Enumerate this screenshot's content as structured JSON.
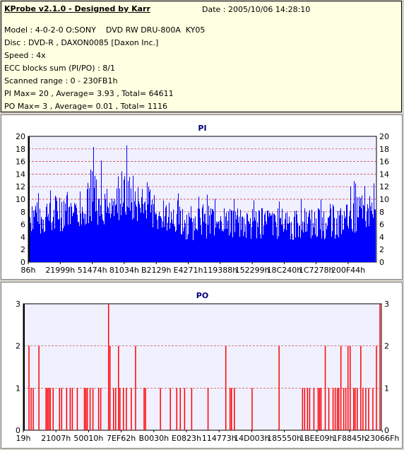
{
  "header": {
    "title": "KProbe v2.1.0 - Designed by Karr",
    "date": "Date : 2005/10/06 14:28:10",
    "lines": [
      "Model : 4-0-2-0 O:SONY    DVD RW DRU-800A  KY05",
      "Disc : DVD-R , DAXON0085 [Daxon Inc.]",
      "Speed : 4x",
      "ECC blocks sum (PI/PO) : 8/1",
      "Scanned range : 0 - 230FB1h",
      "PI Max= 20 , Average= 3.93 , Total= 64611",
      "PO Max= 3 , Average= 0.01 , Total= 1116"
    ]
  },
  "colors": {
    "pi": "#0000ff",
    "po": "#ff0000",
    "plot_bg": "#f0f0ff",
    "grid": "#cc3333"
  },
  "chart_data": [
    {
      "type": "bar",
      "title": "PI",
      "ylim": [
        0,
        20
      ],
      "yticks": [
        0,
        2,
        4,
        6,
        8,
        10,
        12,
        14,
        16,
        18,
        20
      ],
      "xtick_labels": [
        "86h",
        "21999h",
        "51474h",
        "81034h",
        "B2129h",
        "E4271h",
        "119388h",
        "152299h",
        "18C240h",
        "1C7278h",
        "200F44h"
      ],
      "profile": [
        {
          "x": 0.0,
          "base": 8,
          "peak": 12
        },
        {
          "x": 0.04,
          "base": 8,
          "peak": 11
        },
        {
          "x": 0.08,
          "base": 8,
          "peak": 13
        },
        {
          "x": 0.12,
          "base": 9,
          "peak": 14
        },
        {
          "x": 0.16,
          "base": 9,
          "peak": 16
        },
        {
          "x": 0.18,
          "base": 10,
          "peak": 20
        },
        {
          "x": 0.21,
          "base": 9,
          "peak": 17
        },
        {
          "x": 0.25,
          "base": 10,
          "peak": 16
        },
        {
          "x": 0.28,
          "base": 10,
          "peak": 20
        },
        {
          "x": 0.31,
          "base": 10,
          "peak": 16
        },
        {
          "x": 0.35,
          "base": 9,
          "peak": 14
        },
        {
          "x": 0.4,
          "base": 8,
          "peak": 12
        },
        {
          "x": 0.45,
          "base": 7,
          "peak": 11
        },
        {
          "x": 0.5,
          "base": 7,
          "peak": 11
        },
        {
          "x": 0.55,
          "base": 7,
          "peak": 10
        },
        {
          "x": 0.6,
          "base": 7,
          "peak": 10
        },
        {
          "x": 0.65,
          "base": 7,
          "peak": 10
        },
        {
          "x": 0.7,
          "base": 7,
          "peak": 10
        },
        {
          "x": 0.75,
          "base": 7,
          "peak": 10
        },
        {
          "x": 0.8,
          "base": 7,
          "peak": 10
        },
        {
          "x": 0.85,
          "base": 7,
          "peak": 10
        },
        {
          "x": 0.9,
          "base": 7,
          "peak": 10
        },
        {
          "x": 0.95,
          "base": 8,
          "peak": 14
        },
        {
          "x": 1.0,
          "base": 9,
          "peak": 13
        }
      ]
    },
    {
      "type": "bar",
      "title": "PO",
      "ylim": [
        0,
        3
      ],
      "yticks": [
        0,
        1,
        2,
        3
      ],
      "xtick_labels": [
        "19h",
        "21007h",
        "50010h",
        "7EF62h",
        "B0030h",
        "E0823h",
        "114773h",
        "14D003h",
        "185550h",
        "1BEE09h",
        "1F8845h",
        "23066Fh"
      ],
      "spikes": [
        {
          "x": 0.012,
          "v": 2
        },
        {
          "x": 0.018,
          "v": 1
        },
        {
          "x": 0.024,
          "v": 1
        },
        {
          "x": 0.04,
          "v": 2
        },
        {
          "x": 0.06,
          "v": 1
        },
        {
          "x": 0.064,
          "v": 1
        },
        {
          "x": 0.068,
          "v": 1
        },
        {
          "x": 0.072,
          "v": 1
        },
        {
          "x": 0.08,
          "v": 1
        },
        {
          "x": 0.098,
          "v": 1
        },
        {
          "x": 0.104,
          "v": 1
        },
        {
          "x": 0.118,
          "v": 1
        },
        {
          "x": 0.128,
          "v": 1
        },
        {
          "x": 0.134,
          "v": 1
        },
        {
          "x": 0.148,
          "v": 1
        },
        {
          "x": 0.168,
          "v": 1
        },
        {
          "x": 0.172,
          "v": 1
        },
        {
          "x": 0.176,
          "v": 1
        },
        {
          "x": 0.184,
          "v": 1
        },
        {
          "x": 0.192,
          "v": 1
        },
        {
          "x": 0.208,
          "v": 1
        },
        {
          "x": 0.214,
          "v": 1
        },
        {
          "x": 0.236,
          "v": 3
        },
        {
          "x": 0.24,
          "v": 2
        },
        {
          "x": 0.25,
          "v": 1
        },
        {
          "x": 0.256,
          "v": 1
        },
        {
          "x": 0.264,
          "v": 2
        },
        {
          "x": 0.268,
          "v": 1
        },
        {
          "x": 0.278,
          "v": 1
        },
        {
          "x": 0.286,
          "v": 1
        },
        {
          "x": 0.3,
          "v": 1
        },
        {
          "x": 0.312,
          "v": 2
        },
        {
          "x": 0.336,
          "v": 1
        },
        {
          "x": 0.34,
          "v": 1
        },
        {
          "x": 0.382,
          "v": 1
        },
        {
          "x": 0.41,
          "v": 1
        },
        {
          "x": 0.428,
          "v": 1
        },
        {
          "x": 0.438,
          "v": 1
        },
        {
          "x": 0.45,
          "v": 1
        },
        {
          "x": 0.47,
          "v": 1
        },
        {
          "x": 0.516,
          "v": 1
        },
        {
          "x": 0.566,
          "v": 2
        },
        {
          "x": 0.578,
          "v": 1
        },
        {
          "x": 0.582,
          "v": 1
        },
        {
          "x": 0.59,
          "v": 1
        },
        {
          "x": 0.64,
          "v": 1
        },
        {
          "x": 0.716,
          "v": 2
        },
        {
          "x": 0.782,
          "v": 1
        },
        {
          "x": 0.788,
          "v": 1
        },
        {
          "x": 0.796,
          "v": 1
        },
        {
          "x": 0.802,
          "v": 1
        },
        {
          "x": 0.814,
          "v": 1
        },
        {
          "x": 0.826,
          "v": 1
        },
        {
          "x": 0.83,
          "v": 1
        },
        {
          "x": 0.834,
          "v": 1
        },
        {
          "x": 0.846,
          "v": 2
        },
        {
          "x": 0.856,
          "v": 1
        },
        {
          "x": 0.868,
          "v": 1
        },
        {
          "x": 0.874,
          "v": 1
        },
        {
          "x": 0.88,
          "v": 1
        },
        {
          "x": 0.884,
          "v": 1
        },
        {
          "x": 0.89,
          "v": 2
        },
        {
          "x": 0.898,
          "v": 1
        },
        {
          "x": 0.904,
          "v": 1
        },
        {
          "x": 0.91,
          "v": 2
        },
        {
          "x": 0.916,
          "v": 2
        },
        {
          "x": 0.926,
          "v": 1
        },
        {
          "x": 0.93,
          "v": 1
        },
        {
          "x": 0.936,
          "v": 1
        },
        {
          "x": 0.946,
          "v": 2
        },
        {
          "x": 0.952,
          "v": 1
        },
        {
          "x": 0.96,
          "v": 1
        },
        {
          "x": 0.968,
          "v": 1
        },
        {
          "x": 0.98,
          "v": 1
        },
        {
          "x": 0.99,
          "v": 2
        },
        {
          "x": 1.0,
          "v": 3
        }
      ]
    }
  ]
}
